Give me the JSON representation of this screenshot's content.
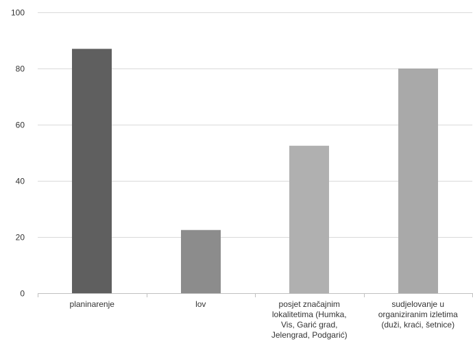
{
  "chart_data": {
    "type": "bar",
    "title": "",
    "xlabel": "",
    "ylabel": "",
    "ylim": [
      0,
      100
    ],
    "yticks": [
      0,
      20,
      40,
      60,
      80,
      100
    ],
    "grid": true,
    "categories": [
      "planinarenje",
      "lov",
      "posjet značajnim lokalitetima (Humka, Vis, Garić grad, Jelengrad, Podgarić)",
      "sudjelovanje u organiziranim izletima (duži, kraći, šetnice)"
    ],
    "category_label_lines": [
      [
        "planinarenje"
      ],
      [
        "lov"
      ],
      [
        "posjet značajnim",
        "lokalitetima (Humka,",
        "Vis, Garić grad,",
        "Jelengrad, Podgarić)"
      ],
      [
        "sudjelovanje u",
        "organiziranim izletima",
        "(duži, kraći, šetnice)"
      ]
    ],
    "values": [
      87,
      22.5,
      52.5,
      80
    ],
    "bar_colors": [
      "#5f5f5f",
      "#8c8c8c",
      "#b0b0b0",
      "#a9a9a9"
    ],
    "grid_color": "#d9d9d9",
    "axis_color": "#bfbfbf"
  }
}
